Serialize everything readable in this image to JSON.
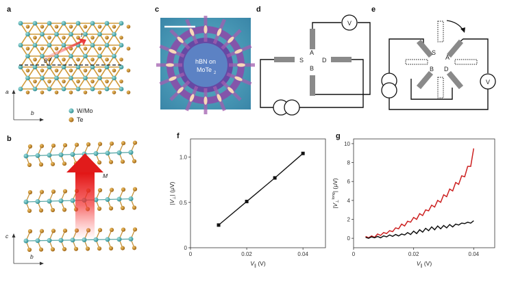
{
  "panels": {
    "a": {
      "label": "a",
      "theta": "θ",
      "current": "I",
      "axis_a": "a",
      "axis_b": "b",
      "legend": [
        {
          "name": "W/Mo",
          "color": "#3aa3a6"
        },
        {
          "name": "Te",
          "color": "#b97a1b"
        }
      ]
    },
    "b": {
      "label": "b",
      "moment": "M",
      "axis_c": "c",
      "axis_b": "b"
    },
    "c": {
      "label": "c",
      "text_line1": "hBN on",
      "text_line2": "MoTe",
      "text_sub": "2"
    },
    "d": {
      "label": "d",
      "voltmeter": "V",
      "contacts": [
        "A",
        "S",
        "D",
        "B"
      ]
    },
    "e": {
      "label": "e",
      "voltmeter": "V",
      "contacts": [
        "S",
        "A",
        "B",
        "D"
      ]
    },
    "f": {
      "label": "f"
    },
    "g": {
      "label": "g"
    }
  },
  "chart_data": [
    {
      "panel": "f",
      "type": "line",
      "x": [
        0.01,
        0.02,
        0.03,
        0.04
      ],
      "y": [
        0.25,
        0.51,
        0.77,
        1.04
      ],
      "xlim": [
        0,
        0.048
      ],
      "ylim": [
        0,
        1.2
      ],
      "xticks": [
        "0",
        "0.02",
        "0.04"
      ],
      "yticks": [
        "0",
        "0.5",
        "1.0"
      ],
      "xlabel": "V",
      "xlabel_sub": "∥",
      "xlabel_unit": "(V)",
      "ylabel": "|V",
      "ylabel_sub": "⊥",
      "ylabel_unit": "| (μV)",
      "marker": "square",
      "color": "#111111"
    },
    {
      "panel": "g",
      "type": "line",
      "xlim": [
        0,
        0.047
      ],
      "ylim": [
        -1,
        10.5
      ],
      "xticks": [
        "0",
        "0.02",
        "0.04"
      ],
      "yticks": [
        "0",
        "2",
        "4",
        "6",
        "8",
        "10"
      ],
      "xlabel": "V",
      "xlabel_sub": "∥",
      "xlabel_unit": "(V)",
      "ylabel": "|V",
      "ylabel_sub": "⊥",
      "ylabel_sup": "long",
      "ylabel_unit": "| (μV)",
      "series": [
        {
          "color": "#cc1f1f",
          "x": [
            0.004,
            0.005,
            0.006,
            0.007,
            0.008,
            0.009,
            0.01,
            0.011,
            0.012,
            0.013,
            0.014,
            0.015,
            0.016,
            0.017,
            0.018,
            0.019,
            0.02,
            0.021,
            0.022,
            0.023,
            0.024,
            0.025,
            0.026,
            0.027,
            0.028,
            0.029,
            0.03,
            0.031,
            0.032,
            0.033,
            0.034,
            0.035,
            0.036,
            0.037,
            0.038,
            0.039,
            0.04
          ],
          "y": [
            0.2,
            0.05,
            0.25,
            0.1,
            0.45,
            0.3,
            0.6,
            0.5,
            0.8,
            0.7,
            1.1,
            1.0,
            1.5,
            1.3,
            1.8,
            1.7,
            2.2,
            2.0,
            2.6,
            2.4,
            3.0,
            2.9,
            3.5,
            3.3,
            4.0,
            3.8,
            4.6,
            4.4,
            5.2,
            5.0,
            5.9,
            5.7,
            6.6,
            6.5,
            7.6,
            7.6,
            9.5
          ]
        },
        {
          "color": "#111111",
          "x": [
            0.004,
            0.005,
            0.006,
            0.007,
            0.008,
            0.009,
            0.01,
            0.011,
            0.012,
            0.013,
            0.014,
            0.015,
            0.016,
            0.017,
            0.018,
            0.019,
            0.02,
            0.021,
            0.022,
            0.023,
            0.024,
            0.025,
            0.026,
            0.027,
            0.028,
            0.029,
            0.03,
            0.031,
            0.032,
            0.033,
            0.034,
            0.035,
            0.036,
            0.037,
            0.038,
            0.039,
            0.04
          ],
          "y": [
            0.1,
            0.0,
            0.15,
            0.05,
            0.2,
            0.05,
            0.25,
            0.15,
            0.35,
            0.2,
            0.4,
            0.25,
            0.45,
            0.35,
            0.6,
            0.4,
            0.75,
            0.5,
            0.9,
            0.65,
            1.05,
            0.8,
            1.2,
            0.9,
            1.3,
            1.0,
            1.35,
            1.1,
            1.45,
            1.2,
            1.5,
            1.4,
            1.6,
            1.55,
            1.7,
            1.6,
            1.85
          ]
        }
      ]
    }
  ]
}
